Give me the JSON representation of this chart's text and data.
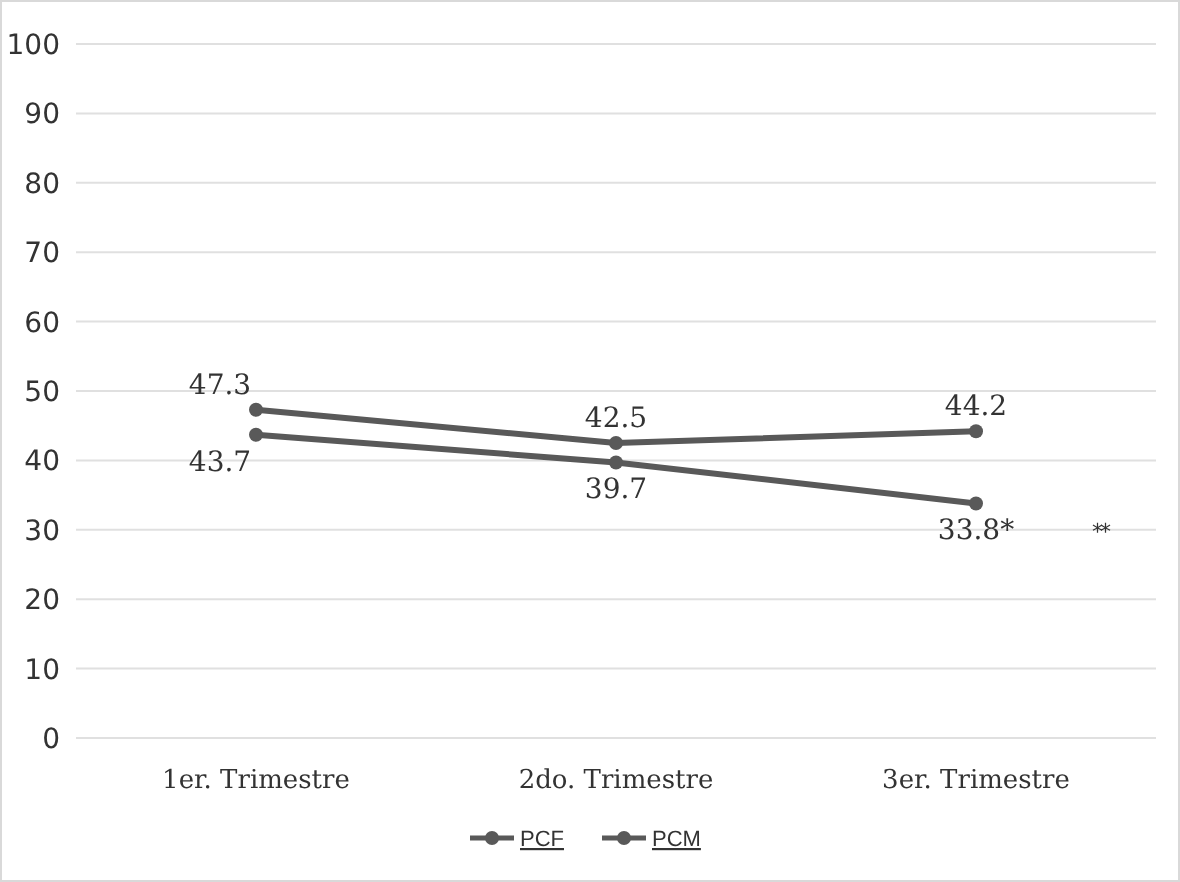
{
  "chart_data": {
    "type": "line",
    "categories": [
      "1er. Trimestre",
      "2do. Trimestre",
      "3er. Trimestre"
    ],
    "series": [
      {
        "name": "PCF",
        "color": "#595959",
        "values": [
          47.3,
          42.5,
          44.2
        ],
        "value_labels": [
          "47.3",
          "42.5",
          "44.2"
        ]
      },
      {
        "name": "PCM",
        "color": "#595959",
        "values": [
          43.7,
          39.7,
          33.8
        ],
        "value_labels": [
          "43.7",
          "39.7",
          "33.8*"
        ]
      }
    ],
    "ylim": [
      0,
      100
    ],
    "yticks": [
      0,
      10,
      20,
      30,
      40,
      50,
      60,
      70,
      80,
      90,
      100
    ],
    "grid": "y",
    "legend": "bottom",
    "marker": "circle",
    "annotations": [
      "**"
    ]
  }
}
